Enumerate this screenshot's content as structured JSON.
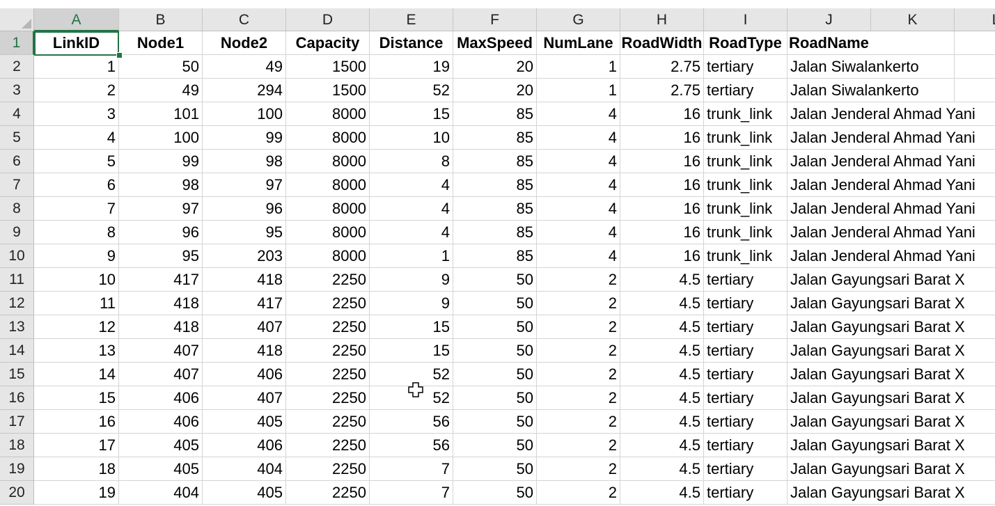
{
  "column_letters": [
    "A",
    "B",
    "C",
    "D",
    "E",
    "F",
    "G",
    "H",
    "I",
    "J",
    "K",
    "L"
  ],
  "row_numbers": [
    "1",
    "2",
    "3",
    "4",
    "5",
    "6",
    "7",
    "8",
    "9",
    "10",
    "11",
    "12",
    "13",
    "14",
    "15",
    "16",
    "17",
    "18",
    "19",
    "20"
  ],
  "active_cell": "A1",
  "header_row": [
    "LinkID",
    "Node1",
    "Node2",
    "Capacity",
    "Distance",
    "MaxSpeed",
    "NumLane",
    "RoadWidth",
    "RoadType",
    "RoadName"
  ],
  "rows": [
    [
      "1",
      "50",
      "49",
      "1500",
      "19",
      "20",
      "1",
      "2.75",
      "tertiary",
      "Jalan Siwalankerto"
    ],
    [
      "2",
      "49",
      "294",
      "1500",
      "52",
      "20",
      "1",
      "2.75",
      "tertiary",
      "Jalan Siwalankerto"
    ],
    [
      "3",
      "101",
      "100",
      "8000",
      "15",
      "85",
      "4",
      "16",
      "trunk_link",
      "Jalan Jenderal Ahmad Yani"
    ],
    [
      "4",
      "100",
      "99",
      "8000",
      "10",
      "85",
      "4",
      "16",
      "trunk_link",
      "Jalan Jenderal Ahmad Yani"
    ],
    [
      "5",
      "99",
      "98",
      "8000",
      "8",
      "85",
      "4",
      "16",
      "trunk_link",
      "Jalan Jenderal Ahmad Yani"
    ],
    [
      "6",
      "98",
      "97",
      "8000",
      "4",
      "85",
      "4",
      "16",
      "trunk_link",
      "Jalan Jenderal Ahmad Yani"
    ],
    [
      "7",
      "97",
      "96",
      "8000",
      "4",
      "85",
      "4",
      "16",
      "trunk_link",
      "Jalan Jenderal Ahmad Yani"
    ],
    [
      "8",
      "96",
      "95",
      "8000",
      "4",
      "85",
      "4",
      "16",
      "trunk_link",
      "Jalan Jenderal Ahmad Yani"
    ],
    [
      "9",
      "95",
      "203",
      "8000",
      "1",
      "85",
      "4",
      "16",
      "trunk_link",
      "Jalan Jenderal Ahmad Yani"
    ],
    [
      "10",
      "417",
      "418",
      "2250",
      "9",
      "50",
      "2",
      "4.5",
      "tertiary",
      "Jalan Gayungsari Barat X"
    ],
    [
      "11",
      "418",
      "417",
      "2250",
      "9",
      "50",
      "2",
      "4.5",
      "tertiary",
      "Jalan Gayungsari Barat X"
    ],
    [
      "12",
      "418",
      "407",
      "2250",
      "15",
      "50",
      "2",
      "4.5",
      "tertiary",
      "Jalan Gayungsari Barat X"
    ],
    [
      "13",
      "407",
      "418",
      "2250",
      "15",
      "50",
      "2",
      "4.5",
      "tertiary",
      "Jalan Gayungsari Barat X"
    ],
    [
      "14",
      "407",
      "406",
      "2250",
      "52",
      "50",
      "2",
      "4.5",
      "tertiary",
      "Jalan Gayungsari Barat X"
    ],
    [
      "15",
      "406",
      "407",
      "2250",
      "52",
      "50",
      "2",
      "4.5",
      "tertiary",
      "Jalan Gayungsari Barat X"
    ],
    [
      "16",
      "406",
      "405",
      "2250",
      "56",
      "50",
      "2",
      "4.5",
      "tertiary",
      "Jalan Gayungsari Barat X"
    ],
    [
      "17",
      "405",
      "406",
      "2250",
      "56",
      "50",
      "2",
      "4.5",
      "tertiary",
      "Jalan Gayungsari Barat X"
    ],
    [
      "18",
      "405",
      "404",
      "2250",
      "7",
      "50",
      "2",
      "4.5",
      "tertiary",
      "Jalan Gayungsari Barat X"
    ],
    [
      "19",
      "404",
      "405",
      "2250",
      "7",
      "50",
      "2",
      "4.5",
      "tertiary",
      "Jalan Gayungsari Barat X"
    ]
  ],
  "colors": {
    "accent": "#217346",
    "header_bg": "#e6e6e6",
    "gridline": "#d4d4d4"
  },
  "cursor_icon": "plus-cross-cursor-icon"
}
